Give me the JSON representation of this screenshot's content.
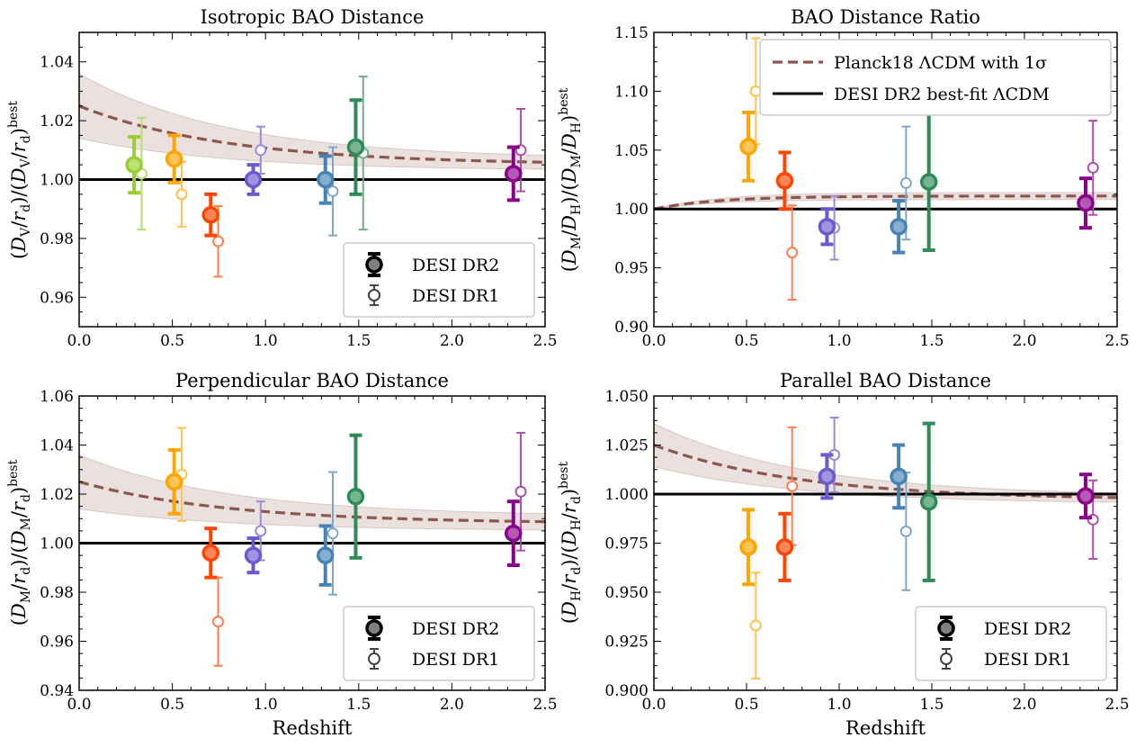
{
  "figure": {
    "xlabel": "Redshift"
  },
  "chart_data": [
    {
      "type": "scatter",
      "title": "Isotropic BAO Distance",
      "xlabel": "",
      "ylabel": "(D_V/r_d)/(D_V/r_d)^best",
      "xlim": [
        0.0,
        2.5
      ],
      "ylim": [
        0.95,
        1.05
      ],
      "xticks": [
        0.0,
        0.5,
        1.0,
        1.5,
        2.0,
        2.5
      ],
      "xtick_labels": [
        "0.0",
        "0.5",
        "1.0",
        "1.5",
        "2.0",
        "2.5"
      ],
      "yticks": [
        0.96,
        0.98,
        1.0,
        1.02,
        1.04
      ],
      "ytick_labels": [
        "0.96",
        "0.98",
        "1.00",
        "1.02",
        "1.04"
      ],
      "reference_line": 1.0,
      "planck_curve": {
        "start": 1.025,
        "end": 1.005,
        "sigma_start": 0.011,
        "sigma_end": 0.002
      },
      "legend": {
        "location": "lower-right",
        "type": "markers",
        "entries": [
          "DESI DR2",
          "DESI DR1"
        ]
      },
      "series": [
        {
          "name": "DESI DR2",
          "points": [
            {
              "z": 0.295,
              "y": 1.005,
              "err": 0.0095,
              "color": "#9ACD32"
            },
            {
              "z": 0.51,
              "y": 1.007,
              "err": 0.008,
              "color": "#FFA500"
            },
            {
              "z": 0.706,
              "y": 0.988,
              "err": 0.007,
              "color": "#FF4500"
            },
            {
              "z": 0.934,
              "y": 1.0,
              "err": 0.005,
              "color": "#6A5ACD"
            },
            {
              "z": 1.321,
              "y": 1.0,
              "err": 0.008,
              "color": "#4682B4"
            },
            {
              "z": 1.484,
              "y": 1.011,
              "err": 0.016,
              "color": "#2E8B57"
            },
            {
              "z": 2.33,
              "y": 1.002,
              "err": 0.009,
              "color": "#8B008B"
            }
          ]
        },
        {
          "name": "DESI DR1",
          "points": [
            {
              "z": 0.335,
              "y": 1.002,
              "err": 0.019,
              "color": "#9ACD32"
            },
            {
              "z": 0.55,
              "y": 0.995,
              "err": 0.011,
              "color": "#FFA500"
            },
            {
              "z": 0.746,
              "y": 0.979,
              "err": 0.012,
              "color": "#FF4500"
            },
            {
              "z": 0.974,
              "y": 1.01,
              "err": 0.008,
              "color": "#6A5ACD"
            },
            {
              "z": 1.361,
              "y": 0.996,
              "err": 0.015,
              "color": "#4682B4"
            },
            {
              "z": 1.524,
              "y": 1.009,
              "err": 0.026,
              "color": "#2E8B57"
            },
            {
              "z": 2.37,
              "y": 1.01,
              "err": 0.014,
              "color": "#8B008B"
            }
          ]
        }
      ]
    },
    {
      "type": "scatter",
      "title": "BAO Distance Ratio",
      "xlabel": "",
      "ylabel": "(D_M/D_H)/(D_M/D_H)^best",
      "xlim": [
        0.0,
        2.5
      ],
      "ylim": [
        0.9,
        1.15
      ],
      "xticks": [
        0.0,
        0.5,
        1.0,
        1.5,
        2.0,
        2.5
      ],
      "xtick_labels": [
        "0.0",
        "0.5",
        "1.0",
        "1.5",
        "2.0",
        "2.5"
      ],
      "yticks": [
        0.9,
        0.95,
        1.0,
        1.05,
        1.1,
        1.15
      ],
      "ytick_labels": [
        "0.90",
        "0.95",
        "1.00",
        "1.05",
        "1.10",
        "1.15"
      ],
      "reference_line": 1.0,
      "planck_curve": {
        "kind": "ratio",
        "plateau": 1.011,
        "sigma": 0.003
      },
      "legend": {
        "location": "top-right",
        "type": "lines",
        "entries": [
          "Planck18 ΛCDM with 1σ",
          "DESI DR2 best-fit ΛCDM"
        ]
      },
      "series": [
        {
          "name": "DESI DR2",
          "points": [
            {
              "z": 0.51,
              "y": 1.053,
              "err": 0.029,
              "color": "#FFA500"
            },
            {
              "z": 0.706,
              "y": 1.024,
              "err": 0.024,
              "color": "#FF4500"
            },
            {
              "z": 0.934,
              "y": 0.985,
              "err": 0.015,
              "color": "#6A5ACD"
            },
            {
              "z": 1.321,
              "y": 0.985,
              "err": 0.022,
              "color": "#4682B4"
            },
            {
              "z": 1.484,
              "y": 1.023,
              "err": 0.058,
              "color": "#2E8B57"
            },
            {
              "z": 2.33,
              "y": 1.005,
              "err": 0.021,
              "color": "#8B008B"
            }
          ]
        },
        {
          "name": "DESI DR1",
          "points": [
            {
              "z": 0.55,
              "y": 1.1,
              "err": 0.045,
              "color": "#FFA500"
            },
            {
              "z": 0.746,
              "y": 0.963,
              "err": 0.04,
              "color": "#FF4500"
            },
            {
              "z": 0.974,
              "y": 0.984,
              "err": 0.027,
              "color": "#6A5ACD"
            },
            {
              "z": 1.361,
              "y": 1.022,
              "err": 0.048,
              "color": "#4682B4"
            },
            {
              "z": 2.37,
              "y": 1.035,
              "err": 0.04,
              "color": "#8B008B"
            }
          ]
        }
      ]
    },
    {
      "type": "scatter",
      "title": "Perpendicular BAO Distance",
      "xlabel": "Redshift",
      "ylabel": "(D_M/r_d)/(D_M/r_d)^best",
      "xlim": [
        0.0,
        2.5
      ],
      "ylim": [
        0.94,
        1.06
      ],
      "xticks": [
        0.0,
        0.5,
        1.0,
        1.5,
        2.0,
        2.5
      ],
      "xtick_labels": [
        "0.0",
        "0.5",
        "1.0",
        "1.5",
        "2.0",
        "2.5"
      ],
      "yticks": [
        0.94,
        0.96,
        0.98,
        1.0,
        1.02,
        1.04,
        1.06
      ],
      "ytick_labels": [
        "0.94",
        "0.96",
        "0.98",
        "1.00",
        "1.02",
        "1.04",
        "1.06"
      ],
      "reference_line": 1.0,
      "planck_curve": {
        "start": 1.025,
        "end": 1.008,
        "sigma_start": 0.011,
        "sigma_end": 0.003
      },
      "legend": {
        "location": "lower-right",
        "type": "markers",
        "entries": [
          "DESI DR2",
          "DESI DR1"
        ]
      },
      "series": [
        {
          "name": "DESI DR2",
          "points": [
            {
              "z": 0.51,
              "y": 1.025,
              "err": 0.013,
              "color": "#FFA500"
            },
            {
              "z": 0.706,
              "y": 0.996,
              "err": 0.01,
              "color": "#FF4500"
            },
            {
              "z": 0.934,
              "y": 0.995,
              "err": 0.007,
              "color": "#6A5ACD"
            },
            {
              "z": 1.321,
              "y": 0.995,
              "err": 0.012,
              "color": "#4682B4"
            },
            {
              "z": 1.484,
              "y": 1.019,
              "err": 0.025,
              "color": "#2E8B57"
            },
            {
              "z": 2.33,
              "y": 1.004,
              "err": 0.013,
              "color": "#8B008B"
            }
          ]
        },
        {
          "name": "DESI DR1",
          "points": [
            {
              "z": 0.55,
              "y": 1.028,
              "err": 0.019,
              "color": "#FFA500"
            },
            {
              "z": 0.746,
              "y": 0.968,
              "err": 0.018,
              "color": "#FF4500"
            },
            {
              "z": 0.974,
              "y": 1.005,
              "err": 0.012,
              "color": "#6A5ACD"
            },
            {
              "z": 1.361,
              "y": 1.004,
              "err": 0.025,
              "color": "#4682B4"
            },
            {
              "z": 2.37,
              "y": 1.021,
              "err": 0.024,
              "color": "#8B008B"
            }
          ]
        }
      ]
    },
    {
      "type": "scatter",
      "title": "Parallel BAO Distance",
      "xlabel": "Redshift",
      "ylabel": "(D_H/r_d)/(D_H/r_d)^best",
      "xlim": [
        0.0,
        2.5
      ],
      "ylim": [
        0.9,
        1.05
      ],
      "xticks": [
        0.0,
        0.5,
        1.0,
        1.5,
        2.0,
        2.5
      ],
      "xtick_labels": [
        "0.0",
        "0.5",
        "1.0",
        "1.5",
        "2.0",
        "2.5"
      ],
      "yticks": [
        0.9,
        0.925,
        0.95,
        0.975,
        1.0,
        1.025,
        1.05
      ],
      "ytick_labels": [
        "0.900",
        "0.925",
        "0.950",
        "0.975",
        "1.000",
        "1.025",
        "1.050"
      ],
      "reference_line": 1.0,
      "planck_curve": {
        "start": 1.025,
        "end": 0.997,
        "sigma_start": 0.011,
        "sigma_end": 0.002
      },
      "legend": {
        "location": "lower-right",
        "type": "markers",
        "entries": [
          "DESI DR2",
          "DESI DR1"
        ]
      },
      "series": [
        {
          "name": "DESI DR2",
          "points": [
            {
              "z": 0.51,
              "y": 0.973,
              "err": 0.019,
              "color": "#FFA500"
            },
            {
              "z": 0.706,
              "y": 0.973,
              "err": 0.017,
              "color": "#FF4500"
            },
            {
              "z": 0.934,
              "y": 1.009,
              "err": 0.011,
              "color": "#6A5ACD"
            },
            {
              "z": 1.321,
              "y": 1.009,
              "err": 0.016,
              "color": "#4682B4"
            },
            {
              "z": 1.484,
              "y": 0.996,
              "err": 0.04,
              "color": "#2E8B57"
            },
            {
              "z": 2.33,
              "y": 0.999,
              "err": 0.011,
              "color": "#8B008B"
            }
          ]
        },
        {
          "name": "DESI DR1",
          "points": [
            {
              "z": 0.55,
              "y": 0.933,
              "err": 0.027,
              "color": "#FFA500"
            },
            {
              "z": 0.746,
              "y": 1.004,
              "err": 0.03,
              "color": "#FF4500"
            },
            {
              "z": 0.974,
              "y": 1.02,
              "err": 0.019,
              "color": "#6A5ACD"
            },
            {
              "z": 1.361,
              "y": 0.981,
              "err": 0.03,
              "color": "#4682B4"
            },
            {
              "z": 2.37,
              "y": 0.987,
              "err": 0.02,
              "color": "#8B008B"
            }
          ]
        }
      ]
    }
  ]
}
